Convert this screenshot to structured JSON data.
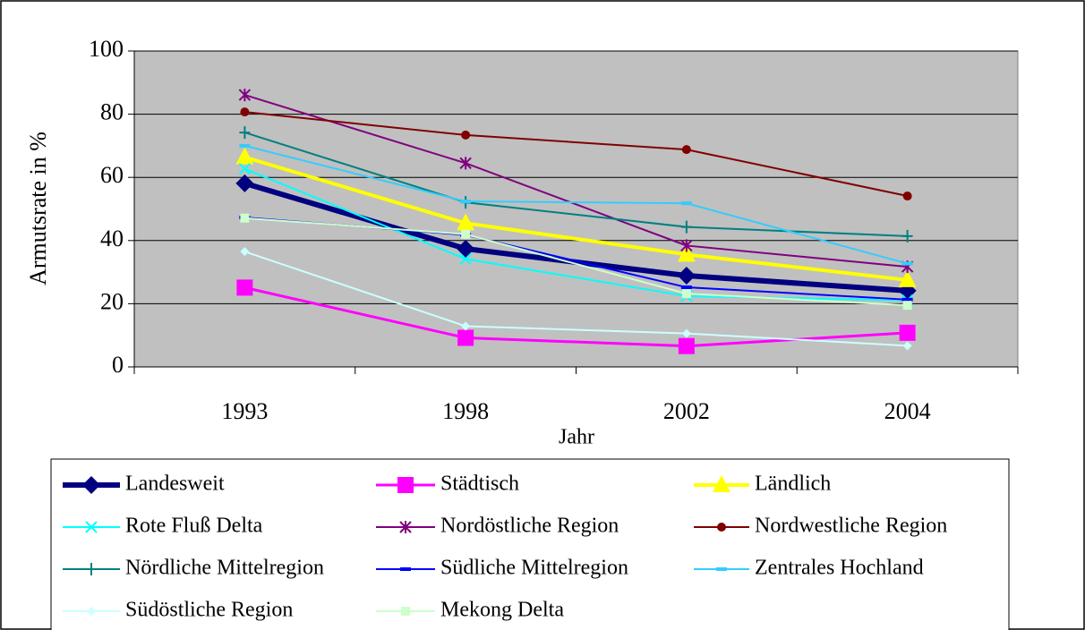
{
  "chart_data": {
    "type": "line",
    "xlabel": "Jahr",
    "ylabel": "Armutsrate in %",
    "categories": [
      "1993",
      "1998",
      "2002",
      "2004"
    ],
    "ylim": [
      0,
      100
    ],
    "yticks": [
      0,
      20,
      40,
      60,
      80,
      100
    ],
    "grid": true,
    "series": [
      {
        "name": "Landesweit",
        "color": "#000080",
        "marker": "diamond",
        "line_width": 6,
        "values": [
          58.1,
          37.4,
          28.9,
          24.1
        ]
      },
      {
        "name": "Städtisch",
        "color": "#ff00ff",
        "marker": "square",
        "line_width": 3,
        "values": [
          25.1,
          9.2,
          6.6,
          10.8
        ]
      },
      {
        "name": "Ländlich",
        "color": "#ffff00",
        "marker": "triangle",
        "line_width": 4,
        "values": [
          66.4,
          45.5,
          35.6,
          27.5
        ]
      },
      {
        "name": "Rote Fluß Delta",
        "color": "#00ffff",
        "marker": "x",
        "line_width": 2,
        "values": [
          62.7,
          34.2,
          22.4,
          21.1
        ]
      },
      {
        "name": "Nordöstliche Region",
        "color": "#800080",
        "marker": "star",
        "line_width": 2,
        "values": [
          86.1,
          64.5,
          38.4,
          31.7
        ]
      },
      {
        "name": "Nordwestliche Region",
        "color": "#800000",
        "marker": "circle",
        "line_width": 2,
        "values": [
          80.7,
          73.4,
          68.8,
          54.1
        ]
      },
      {
        "name": "Nördliche Mittelregion",
        "color": "#008080",
        "marker": "plus",
        "line_width": 2,
        "values": [
          74.2,
          52.1,
          44.3,
          41.4
        ]
      },
      {
        "name": "Südliche Mittelregion",
        "color": "#0000ff",
        "marker": "dash",
        "line_width": 2,
        "values": [
          47.3,
          41.8,
          25.2,
          21.3
        ]
      },
      {
        "name": "Zentrales Hochland",
        "color": "#33ccff",
        "marker": "dash",
        "line_width": 2,
        "values": [
          70.0,
          52.4,
          51.8,
          32.7
        ]
      },
      {
        "name": "Südöstliche Region",
        "color": "#ccffff",
        "marker": "smalldiamond",
        "line_width": 2,
        "values": [
          36.5,
          12.9,
          10.6,
          6.7
        ]
      },
      {
        "name": "Mekong Delta",
        "color": "#ccffcc",
        "marker": "smallsquare",
        "line_width": 2,
        "values": [
          47.1,
          42.0,
          23.2,
          19.5
        ]
      }
    ]
  }
}
